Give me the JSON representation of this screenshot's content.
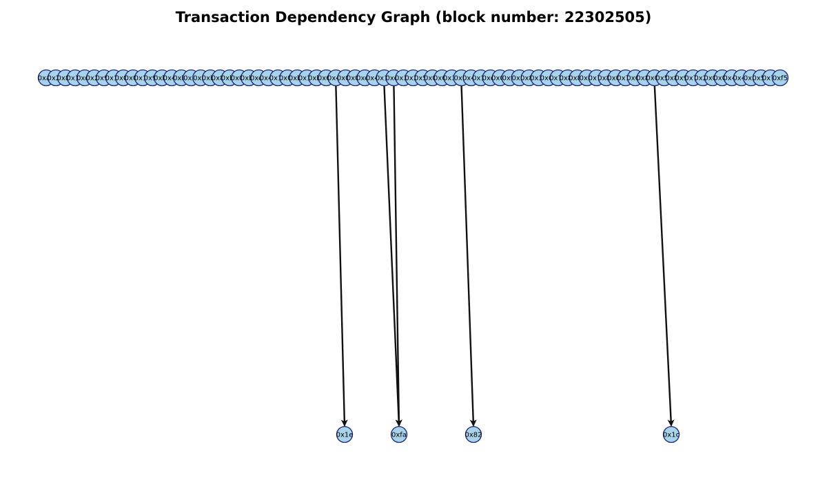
{
  "title": "Transaction Dependency Graph (block number: 22302505)",
  "colors": {
    "node_fill": "#a8d4ea",
    "node_stroke": "#1a237e",
    "edge": "#111111",
    "background": "#ffffff"
  },
  "top_nodes": [
    "0xa4",
    "0x26",
    "0x84",
    "0x15",
    "0xcd",
    "0x29",
    "0x9e",
    "0x10",
    "0x05",
    "0x0b",
    "0x15",
    "0x95",
    "0xbc",
    "0x49",
    "0xbc",
    "0x5f",
    "0x0f",
    "0xb8",
    "0x87",
    "0xb6",
    "0x09",
    "0xba",
    "0xe7",
    "0x41",
    "0x18",
    "0x07",
    "0xb0",
    "0x12",
    "0xbe",
    "0x63",
    "0x4a",
    "0x02",
    "0x07",
    "0xe3",
    "0x40",
    "0x10",
    "0xcb",
    "0x32",
    "0x2c",
    "0x55",
    "0x04",
    "0x62",
    "0x3d",
    "0x9f",
    "0x47",
    "0x16",
    "0xcb",
    "0x04",
    "0xfa",
    "0x2f",
    "0x85",
    "0x38",
    "0x6c",
    "0x78",
    "0x8c",
    "0x86",
    "0x8f",
    "0x7c",
    "0x8d",
    "0x04",
    "0x71",
    "0x63",
    "0x8a",
    "0x09",
    "0x50",
    "0x8a",
    "0x9b",
    "0x70",
    "0x20",
    "0x01",
    "0x09",
    "0x47",
    "0x40",
    "0x3f",
    "0x57",
    "0x7c",
    "0xf5"
  ],
  "bottom_nodes": [
    "0x1e",
    "0xfa",
    "0x82",
    "0x1c"
  ],
  "edges": [
    {
      "from": 30,
      "to": 0
    },
    {
      "from": 35,
      "to": 1
    },
    {
      "from": 36,
      "to": 1
    },
    {
      "from": 43,
      "to": 2
    },
    {
      "from": 63,
      "to": 3
    }
  ]
}
